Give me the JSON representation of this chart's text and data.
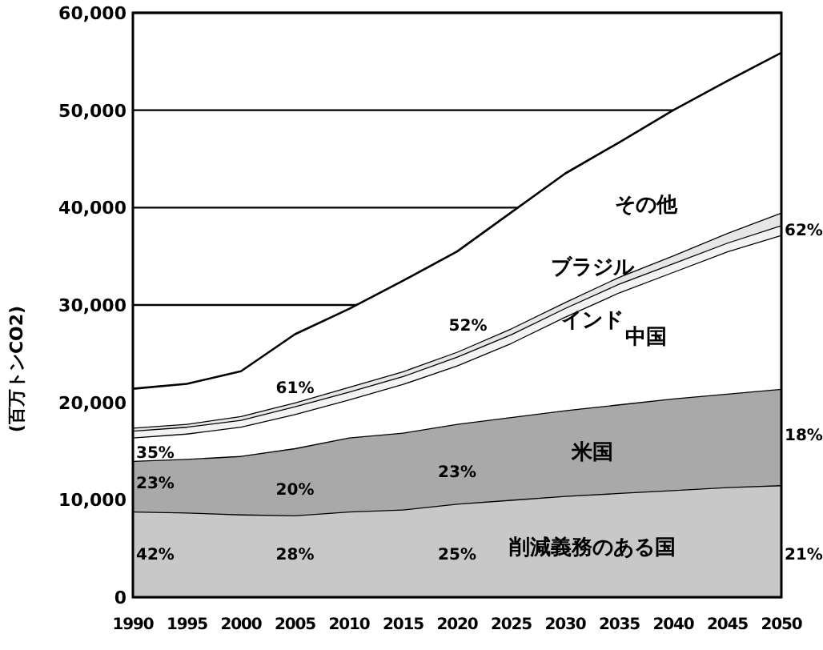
{
  "chart_data": {
    "type": "area",
    "stacked": true,
    "ylabel": "(百万トンCO2)",
    "x": [
      1990,
      1995,
      2000,
      2005,
      2010,
      2015,
      2020,
      2025,
      2030,
      2035,
      2040,
      2045,
      2050
    ],
    "xlim": [
      1990,
      2050
    ],
    "xticks": [
      1990,
      1995,
      2000,
      2005,
      2010,
      2015,
      2020,
      2025,
      2030,
      2035,
      2040,
      2045,
      2050
    ],
    "ylim": [
      0,
      60000
    ],
    "yticks": [
      0,
      {
        "value": 10000,
        "label": "10,000"
      },
      {
        "value": 20000,
        "label": "20,000"
      },
      {
        "value": 30000,
        "label": "30,000"
      },
      {
        "value": 40000,
        "label": "40,000"
      },
      {
        "value": 50000,
        "label": "50,000"
      },
      {
        "value": 60000,
        "label": "60,000"
      }
    ],
    "grid": "y",
    "legend": "bottom right",
    "series": [
      {
        "name": "削減義務のある国",
        "color": "#c8c8c8",
        "values": [
          8800,
          8700,
          8500,
          8400,
          8800,
          9000,
          9600,
          10000,
          10400,
          10700,
          11000,
          11300,
          11500
        ]
      },
      {
        "name": "米国",
        "color": "#a9a9a9",
        "values": [
          5200,
          5500,
          6000,
          6900,
          7600,
          7900,
          8200,
          8500,
          8800,
          9100,
          9400,
          9600,
          9900
        ]
      },
      {
        "name": "中国",
        "color": "#ffffff",
        "values": [
          2400,
          2600,
          3000,
          3500,
          3900,
          5000,
          6000,
          7600,
          9600,
          11500,
          13000,
          14600,
          15800
        ]
      },
      {
        "name": "インド",
        "color": "#f3f3f3",
        "values": [
          700,
          700,
          700,
          800,
          800,
          800,
          900,
          900,
          900,
          900,
          900,
          900,
          1000
        ]
      },
      {
        "name": "ブラジル",
        "color": "#e6e6e6",
        "values": [
          300,
          300,
          400,
          400,
          500,
          500,
          500,
          600,
          600,
          700,
          800,
          1000,
          1300
        ]
      },
      {
        "name": "その他",
        "color": "#ffffff",
        "values": [
          4000,
          4100,
          4600,
          7000,
          8000,
          9300,
          10300,
          11900,
          13200,
          13800,
          14900,
          15600,
          16400
        ]
      }
    ],
    "annotations": [
      "35%",
      "61%",
      "52%",
      "62%",
      "23%",
      "20%",
      "23%",
      "18%",
      "42%",
      "28%",
      "25%",
      "21%"
    ]
  }
}
